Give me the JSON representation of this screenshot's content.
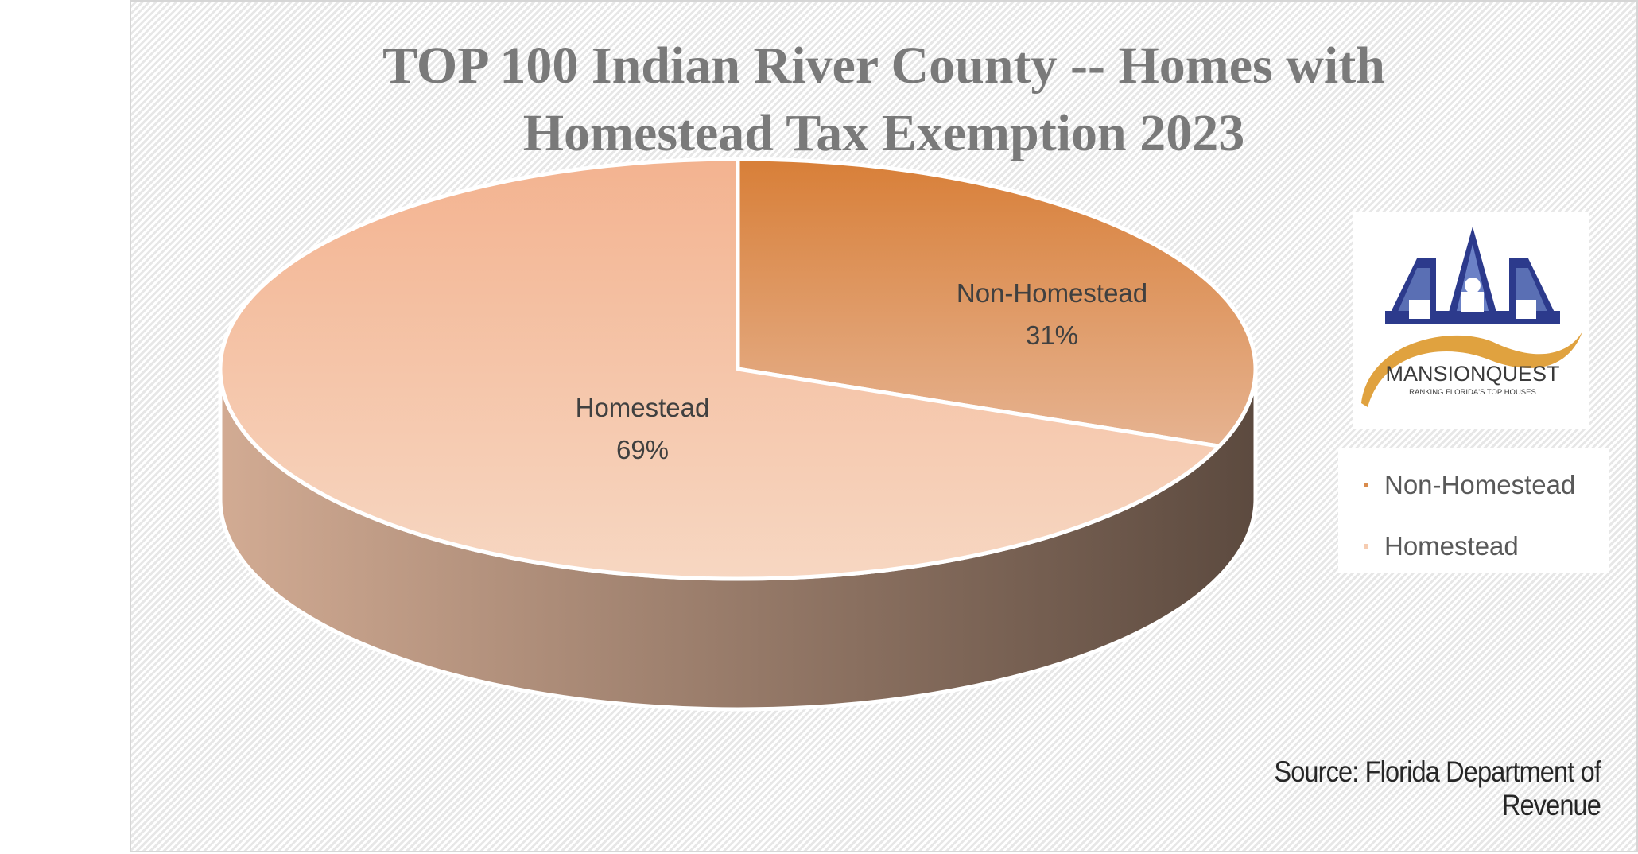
{
  "chart_data": {
    "type": "pie",
    "title": [
      "TOP 100 Indian River County -- Homes with",
      "Homestead Tax Exemption 2023"
    ],
    "categories": [
      "Non-Homestead",
      "Homestead"
    ],
    "values": [
      31,
      69
    ],
    "value_labels": [
      "31%",
      "69%"
    ],
    "colors": [
      "#d98b4c",
      "#f6ccb1"
    ],
    "side_gradient": [
      "#d2ab93",
      "#5c4a3f"
    ],
    "legend": {
      "position": "right",
      "entries": [
        "Non-Homestead",
        "Homestead"
      ],
      "colors": [
        "#d98b4c",
        "#f6ccb1"
      ]
    },
    "style": "3d",
    "source": "Source: Florida Department of Revenue"
  },
  "logo": {
    "name": "MANSIONQUEST",
    "tagline": "RANKING FLORIDA'S TOP HOUSES"
  }
}
